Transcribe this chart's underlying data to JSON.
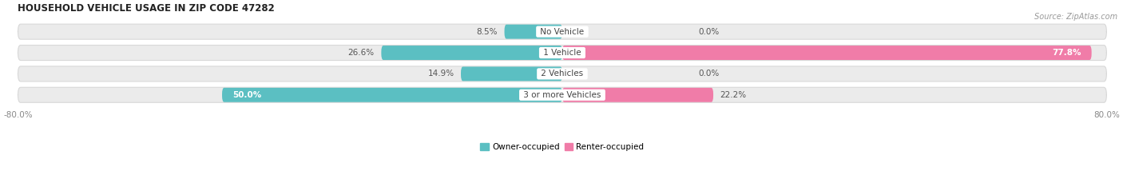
{
  "title": "HOUSEHOLD VEHICLE USAGE IN ZIP CODE 47282",
  "source": "Source: ZipAtlas.com",
  "categories": [
    "No Vehicle",
    "1 Vehicle",
    "2 Vehicles",
    "3 or more Vehicles"
  ],
  "owner_values": [
    8.5,
    26.6,
    14.9,
    50.0
  ],
  "renter_values": [
    0.0,
    77.8,
    0.0,
    22.2
  ],
  "owner_color": "#5bbfc2",
  "renter_color": "#f07ca8",
  "bar_bg_color": "#ebebeb",
  "bar_edge_color": "#d8d8d8",
  "xlim_left": -80,
  "xlim_right": 80,
  "bar_height": 0.72,
  "figsize": [
    14.06,
    2.34
  ],
  "dpi": 100,
  "title_fontsize": 8.5,
  "value_fontsize": 7.5,
  "category_fontsize": 7.5,
  "source_fontsize": 7,
  "legend_fontsize": 7.5,
  "bg_color": "#f8f8f8"
}
